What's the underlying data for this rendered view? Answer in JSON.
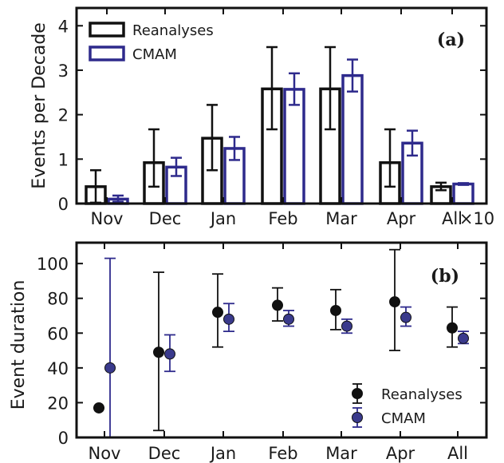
{
  "colors": {
    "reanalyses": "#111111",
    "cmam": "#2e2a8c",
    "cmam_marker": "#3a3a8c"
  },
  "chart_data": [
    {
      "panel": "(a)",
      "type": "bar",
      "ylabel": "Events per Decade",
      "categories": [
        "Nov",
        "Dec",
        "Jan",
        "Feb",
        "Mar",
        "Apr",
        "All"
      ],
      "tick_annotation": "×10",
      "ylim": [
        0,
        4.4
      ],
      "yticks": [
        "0",
        "1",
        "2",
        "3",
        "4"
      ],
      "legend_position": "top-left",
      "series": [
        {
          "name": "Reanalyses",
          "values": [
            0.38,
            0.92,
            1.47,
            2.58,
            2.58,
            0.92,
            0.38
          ],
          "err_low": [
            0.02,
            0.38,
            0.75,
            1.67,
            1.67,
            0.38,
            0.3
          ],
          "err_high": [
            0.75,
            1.67,
            2.22,
            3.52,
            3.52,
            1.67,
            0.47
          ]
        },
        {
          "name": "CMAM",
          "values": [
            0.1,
            0.82,
            1.24,
            2.57,
            2.88,
            1.36,
            0.44
          ],
          "err_low": [
            0.04,
            0.62,
            0.98,
            2.22,
            2.52,
            1.08,
            0.42
          ],
          "err_high": [
            0.18,
            1.03,
            1.5,
            2.93,
            3.24,
            1.64,
            0.46
          ]
        }
      ]
    },
    {
      "panel": "(b)",
      "type": "scatter",
      "ylabel": "Event duration",
      "categories": [
        "Nov",
        "Dec",
        "Jan",
        "Feb",
        "Mar",
        "Apr",
        "All"
      ],
      "ylim": [
        0,
        112
      ],
      "yticks": [
        "0",
        "20",
        "40",
        "60",
        "80",
        "100"
      ],
      "legend_position": "bottom-right",
      "series": [
        {
          "name": "Reanalyses",
          "values": [
            17,
            49,
            72,
            76,
            73,
            78,
            63
          ],
          "err_low": [
            17,
            4,
            52,
            67,
            62,
            50,
            52
          ],
          "err_high": [
            17,
            95,
            94,
            86,
            85,
            108,
            75
          ]
        },
        {
          "name": "CMAM",
          "values": [
            40,
            48,
            68,
            68,
            64,
            69,
            57
          ],
          "err_low": [
            0,
            38,
            61,
            64,
            60,
            64,
            54
          ],
          "err_high": [
            103,
            59,
            77,
            73,
            68,
            75,
            61
          ]
        }
      ]
    }
  ]
}
